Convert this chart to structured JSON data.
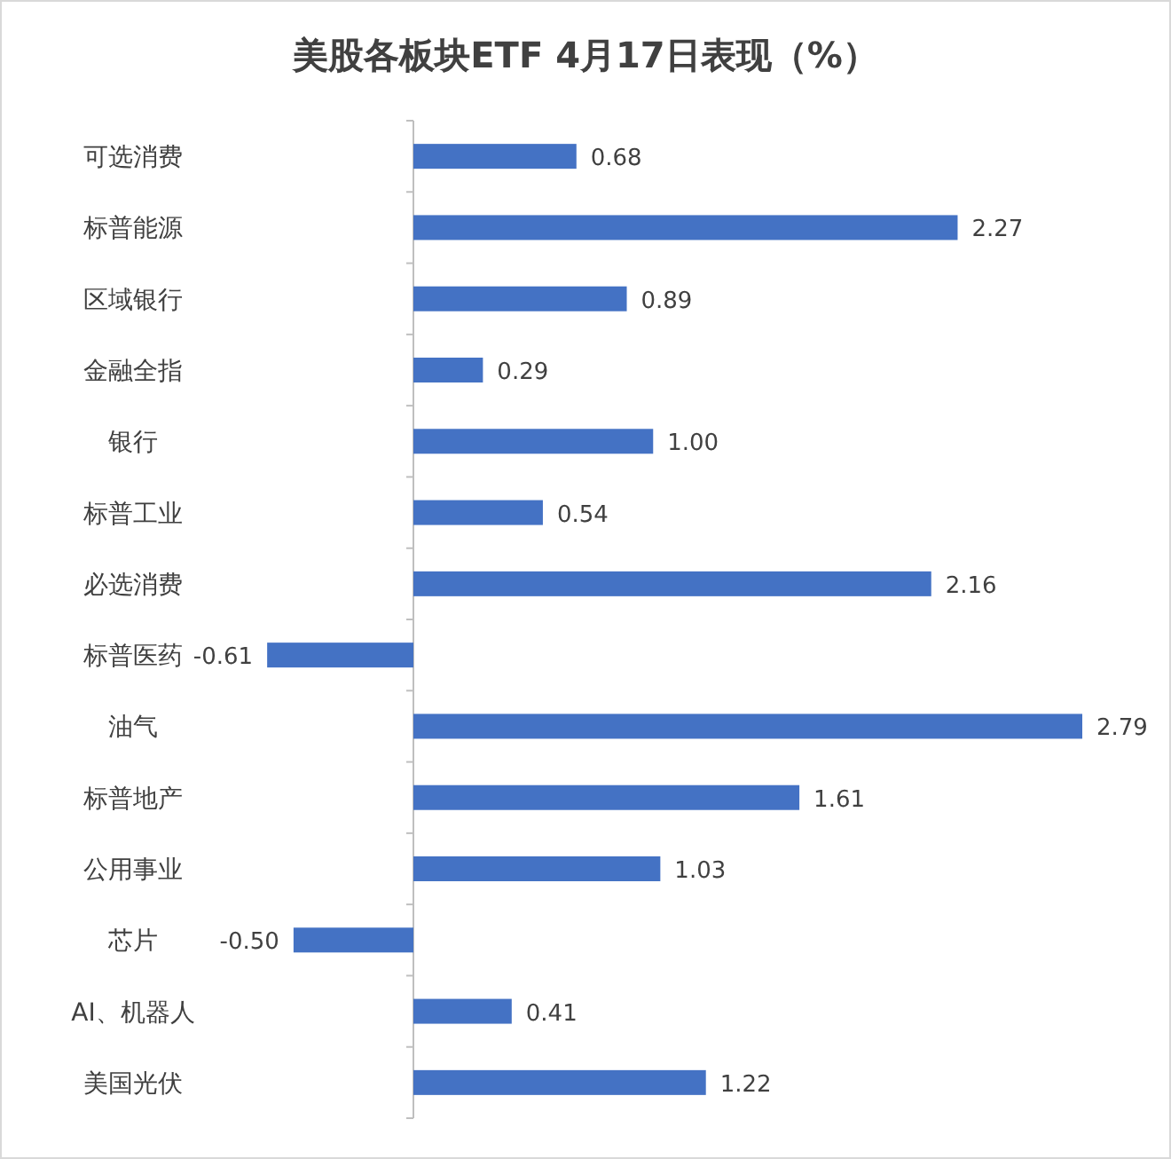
{
  "chart_data": {
    "type": "bar",
    "orientation": "horizontal",
    "title": "美股各板块ETF  4月17日表现（%）",
    "categories": [
      "可选消费",
      "标普能源",
      "区域银行",
      "金融全指",
      "银行",
      "标普工业",
      "必选消费",
      "标普医药",
      "油气",
      "标普地产",
      "公用事业",
      "芯片",
      "AI、机器人",
      "美国光伏"
    ],
    "values": [
      0.68,
      2.27,
      0.89,
      0.29,
      1.0,
      0.54,
      2.16,
      -0.61,
      2.79,
      1.61,
      1.03,
      -0.5,
      0.41,
      1.22
    ],
    "value_labels": [
      "0.68",
      "2.27",
      "0.89",
      "0.29",
      "1.00",
      "0.54",
      "2.16",
      "-0.61",
      "2.79",
      "1.61",
      "1.03",
      "-0.50",
      "0.41",
      "1.22"
    ],
    "color": "#4472c4"
  }
}
